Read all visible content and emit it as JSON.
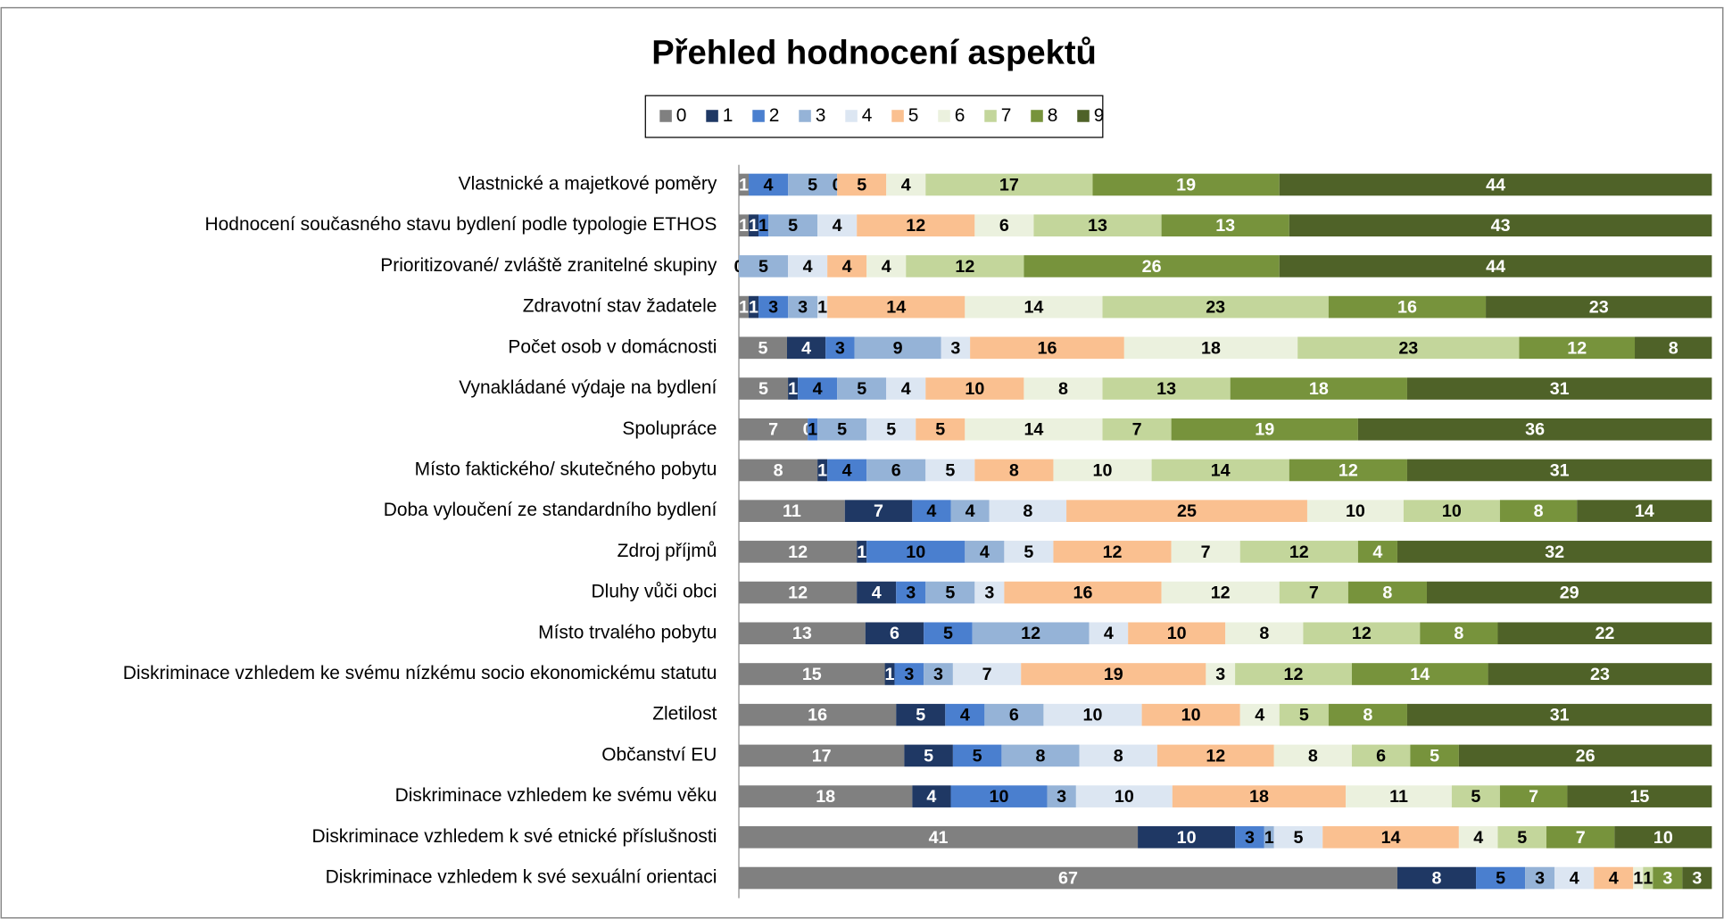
{
  "chart_data": {
    "type": "stacked_bar_100",
    "orientation": "horizontal",
    "title": "Přehled hodnocení aspektů",
    "categories": [
      "Vlastnické a majetkové poměry",
      "Hodnocení současného stavu bydlení podle typologie ETHOS",
      "Prioritizované/ zvláště zranitelné skupiny",
      "Zdravotní stav žadatele",
      "Počet osob v domácnosti",
      "Vynakládané výdaje na bydlení",
      "Spolupráce",
      "Místo faktického/ skutečného pobytu",
      "Doba vyloučení ze standardního bydlení",
      "Zdroj příjmů",
      "Dluhy vůči obci",
      "Místo trvalého pobytu",
      "Diskriminace vzhledem ke svému nízkému socio ekonomickému statutu",
      "Zletilost",
      "Občanství EU",
      "Diskriminace vzhledem ke svému věku ",
      "Diskriminace vzhledem k své etnické příslušnosti",
      "Diskriminace vzhledem k své sexuální orientaci"
    ],
    "series": [
      {
        "name": "0",
        "color": "#808080",
        "values": [
          1,
          1,
          null,
          1,
          5,
          5,
          7,
          8,
          11,
          12,
          12,
          13,
          15,
          16,
          17,
          18,
          41,
          67
        ]
      },
      {
        "name": "1",
        "color": "#1f3864",
        "values": [
          null,
          1,
          null,
          1,
          4,
          1,
          0,
          1,
          7,
          1,
          4,
          6,
          1,
          5,
          5,
          4,
          10,
          8
        ]
      },
      {
        "name": "2",
        "color": "#4a7fcf",
        "values": [
          4,
          1,
          0,
          3,
          3,
          4,
          1,
          4,
          4,
          10,
          3,
          5,
          3,
          4,
          5,
          10,
          3,
          5
        ]
      },
      {
        "name": "3",
        "color": "#95b3d7",
        "values": [
          5,
          5,
          5,
          3,
          9,
          5,
          5,
          6,
          4,
          4,
          5,
          12,
          3,
          6,
          8,
          3,
          1,
          3
        ]
      },
      {
        "name": "4",
        "color": "#dce6f2",
        "values": [
          0,
          4,
          4,
          1,
          3,
          4,
          5,
          5,
          8,
          5,
          3,
          4,
          7,
          10,
          8,
          10,
          5,
          4
        ]
      },
      {
        "name": "5",
        "color": "#fac090",
        "values": [
          5,
          12,
          4,
          14,
          16,
          10,
          5,
          8,
          25,
          12,
          16,
          10,
          19,
          10,
          12,
          18,
          14,
          4
        ]
      },
      {
        "name": "6",
        "color": "#ebf1de",
        "values": [
          4,
          6,
          4,
          14,
          18,
          8,
          14,
          10,
          10,
          7,
          12,
          8,
          3,
          4,
          8,
          11,
          4,
          1
        ]
      },
      {
        "name": "7",
        "color": "#c3d69b",
        "values": [
          17,
          13,
          12,
          23,
          23,
          13,
          7,
          14,
          10,
          12,
          7,
          12,
          12,
          5,
          6,
          5,
          5,
          1
        ]
      },
      {
        "name": "8",
        "color": "#77933c",
        "values": [
          19,
          13,
          26,
          16,
          12,
          18,
          19,
          12,
          8,
          4,
          8,
          8,
          14,
          8,
          5,
          7,
          7,
          3
        ]
      },
      {
        "name": "9",
        "color": "#4f6228",
        "values": [
          44,
          43,
          44,
          23,
          8,
          31,
          36,
          31,
          14,
          32,
          29,
          22,
          23,
          31,
          26,
          15,
          10,
          3
        ]
      }
    ],
    "legend": "top"
  }
}
